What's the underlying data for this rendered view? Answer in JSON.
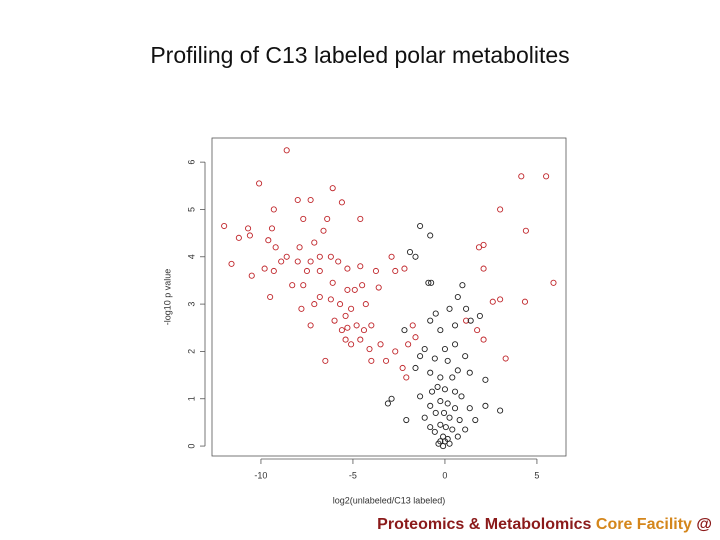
{
  "title": "Profiling of C13 labeled polar metabolites",
  "footer": [
    {
      "text": "Proteomics & Metabolomics",
      "color": "#8b1a1a"
    },
    {
      "text": "Core Facility",
      "color": "#d4861b"
    },
    {
      "text": "@",
      "color": "#8b1a1a"
    }
  ],
  "chart_data": {
    "type": "scatter",
    "xlabel": "log2(unlabeled/C13 labeled)",
    "ylabel": "-log10 p value",
    "xlim": [
      -12.66,
      6.58
    ],
    "ylim": [
      -0.21,
      6.51
    ],
    "xticks": [
      -10,
      -5,
      0,
      5
    ],
    "yticks": [
      0,
      1,
      2,
      3,
      4,
      5,
      6
    ],
    "series": [
      {
        "color": "#c0262b",
        "x": [
          -8.6,
          -10.1,
          -8.0,
          -7.3,
          -6.1,
          -5.6,
          -9.3,
          -12.0,
          -10.7,
          -10.6,
          -11.2,
          -9.4,
          -9.6,
          -7.7,
          -6.4,
          -4.6,
          -6.6,
          -7.1,
          -9.2,
          -7.9,
          -8.6,
          -11.6,
          -9.8,
          -9.3,
          -10.5,
          -8.9,
          -8.0,
          -7.3,
          -6.8,
          -6.2,
          -5.8,
          -7.5,
          -6.8,
          -5.3,
          -4.6,
          -3.75,
          -2.7,
          -2.2,
          -2.9,
          -9.5,
          -8.3,
          -7.7,
          -6.8,
          -6.1,
          -5.3,
          -4.9,
          -4.5,
          -3.6,
          -7.8,
          -7.1,
          -6.2,
          -5.7,
          -5.4,
          -5.1,
          -4.3,
          -7.3,
          -6.0,
          -5.6,
          -5.3,
          -4.8,
          -4.4,
          -4.0,
          -5.4,
          -5.1,
          -4.6,
          -4.1,
          -3.5,
          -4.0,
          -3.2,
          -2.7,
          -6.5,
          -2.0,
          -1.75,
          -2.3,
          -2.1,
          -1.6,
          4.15,
          5.5,
          3.0,
          4.4,
          2.1,
          1.85,
          2.1,
          5.9,
          3.0,
          2.6,
          4.35,
          1.75,
          2.1,
          3.3,
          1.15
        ],
        "values": [
          6.25,
          5.55,
          5.2,
          5.2,
          5.45,
          5.15,
          5.0,
          4.65,
          4.6,
          4.45,
          4.4,
          4.6,
          4.35,
          4.8,
          4.8,
          4.8,
          4.55,
          4.3,
          4.2,
          4.2,
          4.0,
          3.85,
          3.75,
          3.7,
          3.6,
          3.9,
          3.9,
          3.9,
          4.0,
          4.0,
          3.9,
          3.7,
          3.7,
          3.75,
          3.8,
          3.7,
          3.7,
          3.75,
          4.0,
          3.15,
          3.4,
          3.4,
          3.15,
          3.45,
          3.3,
          3.3,
          3.4,
          3.35,
          2.9,
          3.0,
          3.1,
          3.0,
          2.75,
          2.9,
          3.0,
          2.55,
          2.65,
          2.45,
          2.5,
          2.55,
          2.45,
          2.55,
          2.25,
          2.15,
          2.25,
          2.05,
          2.15,
          1.8,
          1.8,
          2.0,
          1.8,
          2.15,
          2.55,
          1.65,
          1.45,
          2.3,
          5.7,
          5.7,
          5.0,
          4.55,
          4.25,
          4.2,
          3.75,
          3.45,
          3.1,
          3.05,
          3.05,
          2.45,
          2.25,
          1.85,
          2.65
        ]
      },
      {
        "color": "#222222",
        "x": [
          -1.35,
          -0.8,
          -1.9,
          -1.6,
          -0.75,
          -0.9,
          0.95,
          0.7,
          0.25,
          1.15,
          -0.5,
          1.9,
          -0.8,
          0.55,
          1.4,
          -0.25,
          -2.2,
          -1.1,
          0,
          0.55,
          1.1,
          -1.35,
          -1.6,
          -0.55,
          0.15,
          0.7,
          -0.8,
          -0.25,
          0.4,
          1.35,
          2.2,
          -0.4,
          0,
          -0.7,
          0.55,
          0.9,
          -1.35,
          -3.1,
          -2.9,
          -0.25,
          0.15,
          -0.8,
          0.55,
          1.35,
          2.2,
          3.0,
          -0.5,
          -0.05,
          0.25,
          -1.1,
          0.8,
          -2.1,
          -0.25,
          0.05,
          0.4,
          -0.55,
          -0.1,
          0.15,
          -0.25,
          0,
          0.25,
          -0.35,
          0.7,
          -0.8,
          1.1,
          1.65,
          -0.1
        ],
        "values": [
          4.65,
          4.45,
          4.1,
          4.0,
          3.45,
          3.45,
          3.4,
          3.15,
          2.9,
          2.9,
          2.8,
          2.75,
          2.65,
          2.55,
          2.65,
          2.45,
          2.45,
          2.05,
          2.05,
          2.15,
          1.9,
          1.9,
          1.65,
          1.85,
          1.8,
          1.6,
          1.55,
          1.45,
          1.45,
          1.55,
          1.4,
          1.25,
          1.2,
          1.15,
          1.15,
          1.05,
          1.05,
          0.9,
          1.0,
          0.95,
          0.9,
          0.85,
          0.8,
          0.8,
          0.85,
          0.75,
          0.7,
          0.7,
          0.6,
          0.6,
          0.55,
          0.55,
          0.45,
          0.4,
          0.35,
          0.3,
          0.2,
          0.15,
          0.1,
          0.1,
          0.05,
          0.05,
          0.2,
          0.4,
          0.35,
          0.55,
          0.0
        ]
      }
    ]
  }
}
